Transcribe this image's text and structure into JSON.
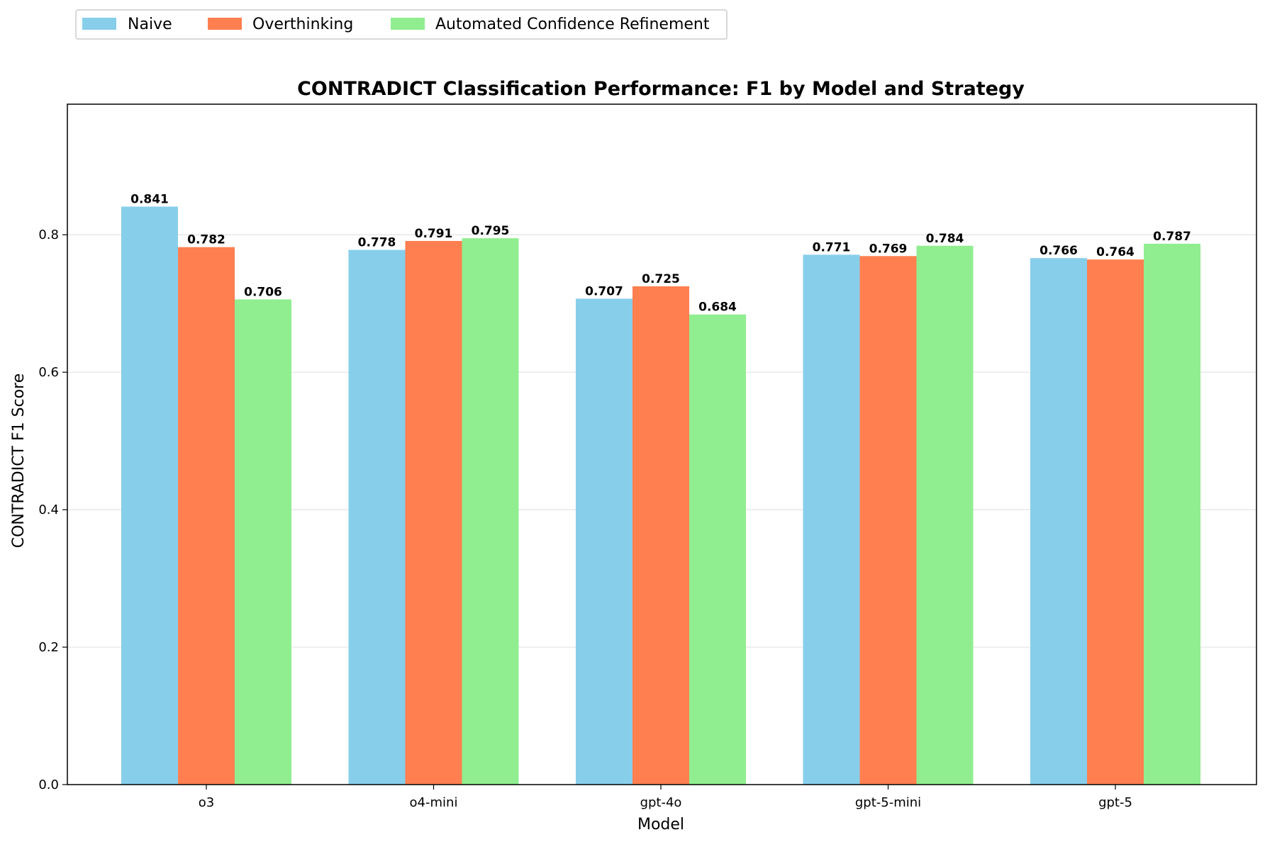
{
  "chart_data": {
    "type": "bar",
    "title": "CONTRADICT Classification Performance: F1 by Model and Strategy",
    "xlabel": "Model",
    "ylabel": "CONTRADICT F1 Score",
    "categories": [
      "o3",
      "o4-mini",
      "gpt-4o",
      "gpt-5-mini",
      "gpt-5"
    ],
    "series": [
      {
        "name": "Naive",
        "color": "#87CEEB",
        "values": [
          0.841,
          0.778,
          0.707,
          0.771,
          0.766
        ],
        "labels": [
          "0.841",
          "0.778",
          "0.707",
          "0.771",
          "0.766"
        ]
      },
      {
        "name": "Overthinking",
        "color": "#FF7F50",
        "values": [
          0.782,
          0.791,
          0.725,
          0.769,
          0.764
        ],
        "labels": [
          "0.782",
          "0.791",
          "0.725",
          "0.769",
          "0.764"
        ]
      },
      {
        "name": "Automated Confidence Refinement",
        "color": "#90EE90",
        "values": [
          0.706,
          0.795,
          0.684,
          0.784,
          0.787
        ],
        "labels": [
          "0.706",
          "0.795",
          "0.684",
          "0.784",
          "0.787"
        ]
      }
    ],
    "ylim": [
      0,
      0.99
    ],
    "yticks": [
      0.0,
      0.2,
      0.4,
      0.6,
      0.8
    ],
    "ytick_labels": [
      "0.0",
      "0.2",
      "0.4",
      "0.6",
      "0.8"
    ],
    "grid": "y",
    "legend_position": "top-left, outside plot"
  }
}
